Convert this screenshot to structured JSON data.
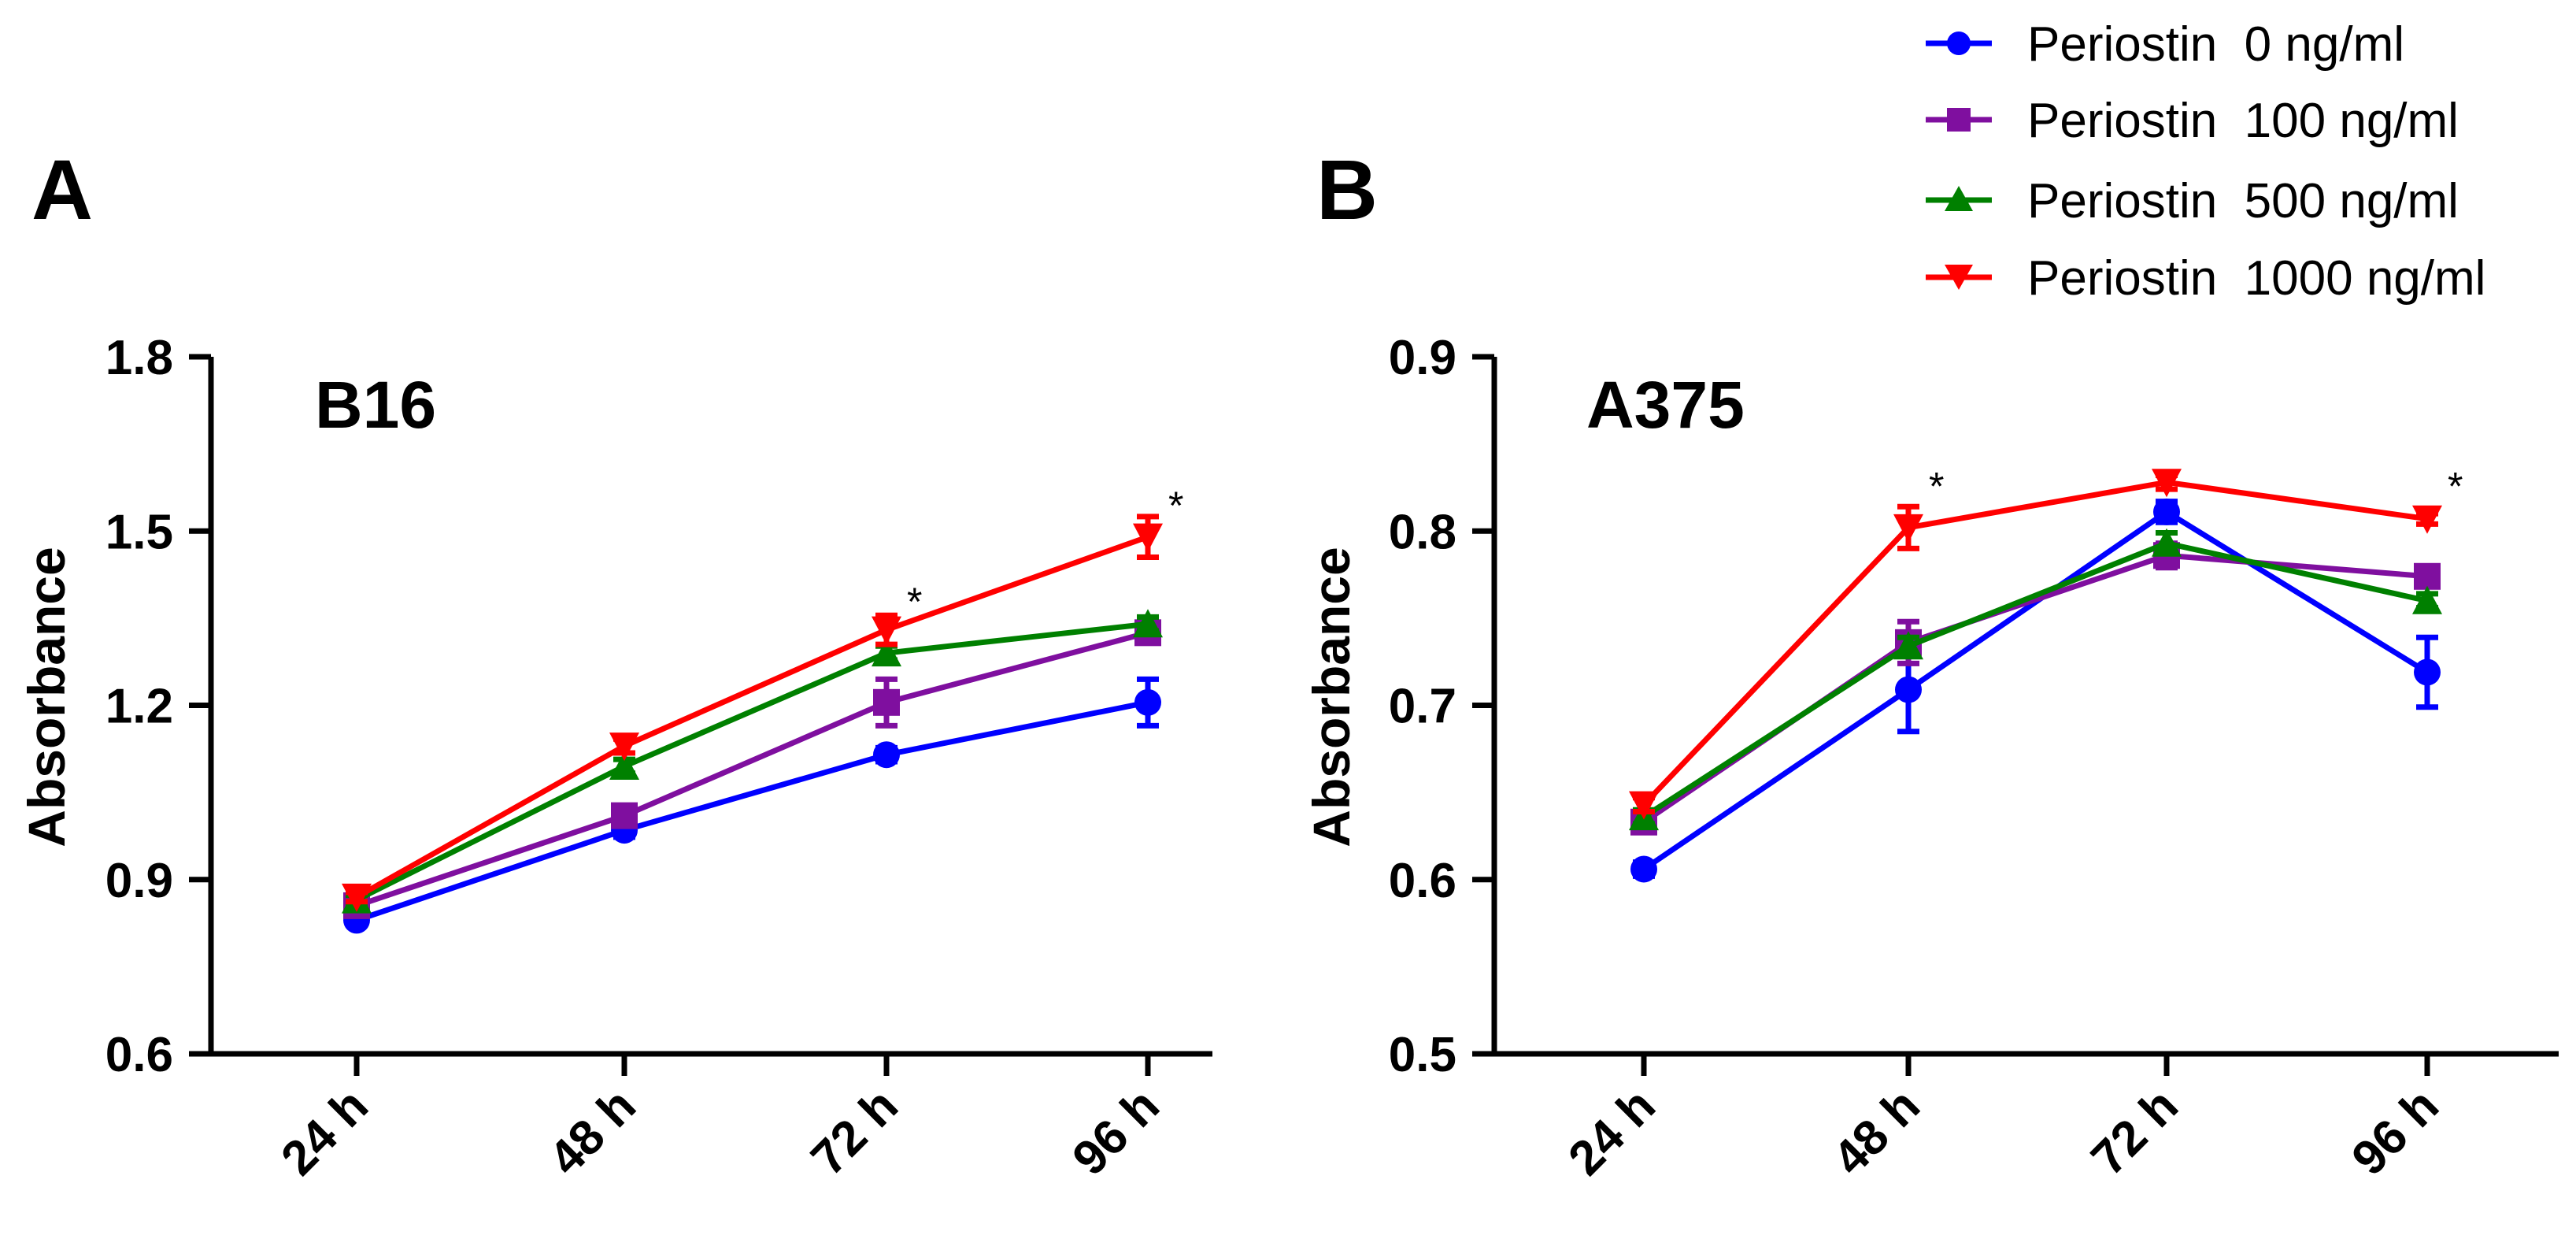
{
  "figure": {
    "panels": [
      "A",
      "B"
    ]
  },
  "legend": [
    {
      "label": "Periostin  0 ng/ml",
      "color": "#0000ff",
      "marker": "circle"
    },
    {
      "label": "Periostin  100 ng/ml",
      "color": "#7f0f9f",
      "marker": "square"
    },
    {
      "label": "Periostin  500 ng/ml",
      "color": "#008000",
      "marker": "triangle-up"
    },
    {
      "label": "Periostin  1000 ng/ml",
      "color": "#ff0000",
      "marker": "triangle-down"
    }
  ],
  "chart_data": [
    {
      "type": "line",
      "panel": "A",
      "title": "B16",
      "xlabel": "",
      "ylabel": "Absorbance",
      "categories": [
        "24 h",
        "48 h",
        "72 h",
        "96 h"
      ],
      "ylim": [
        0.6,
        1.8
      ],
      "yticks": [
        "0.6",
        "0.9",
        "1.2",
        "1.5",
        "1.8"
      ],
      "series": [
        {
          "name": "Periostin  0 ng/ml",
          "values": [
            0.83,
            0.985,
            1.115,
            1.205
          ],
          "errors": [
            0.008,
            0.012,
            0.012,
            0.04
          ]
        },
        {
          "name": "Periostin  100 ng/ml",
          "values": [
            0.855,
            1.01,
            1.205,
            1.325
          ],
          "errors": [
            0.008,
            0.012,
            0.04,
            0.012
          ]
        },
        {
          "name": "Periostin  500 ng/ml",
          "values": [
            0.865,
            1.095,
            1.29,
            1.34
          ],
          "errors": [
            0.008,
            0.012,
            0.012,
            0.012
          ]
        },
        {
          "name": "Periostin  1000 ng/ml",
          "values": [
            0.87,
            1.13,
            1.33,
            1.49
          ],
          "errors": [
            0.008,
            0.012,
            0.025,
            0.035
          ]
        }
      ],
      "annotations": [
        {
          "text": "*",
          "category": "72 h",
          "value": 1.38
        },
        {
          "text": "*",
          "category": "96 h",
          "value": 1.545
        }
      ]
    },
    {
      "type": "line",
      "panel": "B",
      "title": "A375",
      "xlabel": "",
      "ylabel": "Absorbance",
      "categories": [
        "24 h",
        "48 h",
        "72 h",
        "96 h"
      ],
      "ylim": [
        0.5,
        0.9
      ],
      "yticks": [
        "0.5",
        "0.6",
        "0.7",
        "0.8",
        "0.9"
      ],
      "series": [
        {
          "name": "Periostin  0 ng/ml",
          "values": [
            0.606,
            0.709,
            0.811,
            0.719
          ],
          "errors": [
            0.004,
            0.024,
            0.006,
            0.02
          ]
        },
        {
          "name": "Periostin  100 ng/ml",
          "values": [
            0.633,
            0.736,
            0.786,
            0.774
          ],
          "errors": [
            0.006,
            0.012,
            0.007,
            0.004
          ]
        },
        {
          "name": "Periostin  500 ng/ml",
          "values": [
            0.636,
            0.734,
            0.793,
            0.76
          ],
          "errors": [
            0.004,
            0.005,
            0.006,
            0.004
          ]
        },
        {
          "name": "Periostin  1000 ng/ml",
          "values": [
            0.643,
            0.802,
            0.828,
            0.807
          ],
          "errors": [
            0.004,
            0.012,
            0.004,
            0.003
          ]
        }
      ],
      "annotations": [
        {
          "text": "*",
          "category": "48 h",
          "value": 0.826
        },
        {
          "text": "*",
          "category": "96 h",
          "value": 0.826
        }
      ]
    }
  ]
}
